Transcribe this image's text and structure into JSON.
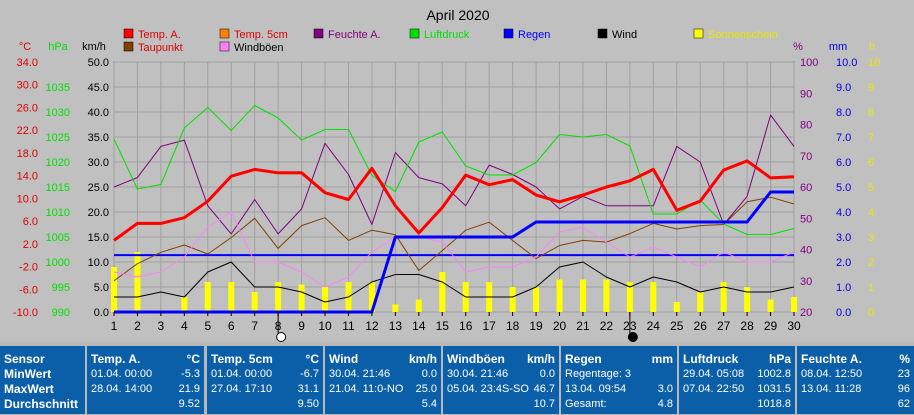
{
  "chart_data": {
    "type": "line",
    "title": "April 2020",
    "x": [
      1,
      2,
      3,
      4,
      5,
      6,
      7,
      8,
      9,
      10,
      11,
      12,
      13,
      14,
      15,
      16,
      17,
      18,
      19,
      20,
      21,
      22,
      23,
      24,
      25,
      26,
      27,
      28,
      29,
      30
    ],
    "xlim": [
      1,
      30
    ],
    "axes": {
      "celsius": {
        "unit": "°C",
        "ticks": [
          "34.0",
          "30.0",
          "26.0",
          "22.0",
          "18.0",
          "14.0",
          "10.0",
          "6.0",
          "2.0",
          "-2.0",
          "-6.0",
          "-10.0"
        ],
        "range": [
          -10,
          34
        ],
        "color": "#e00000"
      },
      "hpa": {
        "unit": "hPa",
        "ticks": [
          "1035",
          "1030",
          "1025",
          "1020",
          "1015",
          "1010",
          "1005",
          "1000",
          "995",
          "990"
        ],
        "range": [
          990,
          1040
        ],
        "color": "#00e000"
      },
      "kmh": {
        "unit": "km/h",
        "ticks": [
          "50.0",
          "45.0",
          "40.0",
          "35.0",
          "30.0",
          "25.0",
          "20.0",
          "15.0",
          "10.0",
          "5.0",
          "0.0"
        ],
        "range": [
          0,
          50
        ],
        "color": "#000000"
      },
      "percent": {
        "unit": "%",
        "ticks": [
          "100",
          "90",
          "80",
          "70",
          "60",
          "50",
          "40",
          "30",
          "20"
        ],
        "range": [
          20,
          100
        ],
        "color": "#800080"
      },
      "mm": {
        "unit": "mm",
        "ticks": [
          "10.0",
          "9.0",
          "8.0",
          "7.0",
          "6.0",
          "5.0",
          "4.0",
          "3.0",
          "2.0",
          "1.0",
          "0.0"
        ],
        "range": [
          0,
          10
        ],
        "color": "#0000e0"
      },
      "hours": {
        "unit": "h",
        "ticks": [
          "10",
          "9",
          "8",
          "7",
          "6",
          "5",
          "4",
          "3",
          "2",
          "1",
          "0"
        ],
        "range": [
          0,
          10
        ],
        "color": "#e8e800"
      }
    },
    "moon_phases": [
      {
        "day": 8,
        "phase": "full"
      },
      {
        "day": 23,
        "phase": "new"
      }
    ],
    "series": [
      {
        "name": "Temp. A.",
        "axis": "celsius",
        "color": "#ff0000",
        "width": 3,
        "values": [
          2.6,
          5.6,
          5.6,
          6.6,
          9.5,
          13.9,
          15.1,
          14.5,
          14.5,
          11.0,
          9.8,
          15.3,
          8.7,
          3.9,
          8.4,
          14.1,
          12.4,
          13.3,
          10.6,
          9.4,
          10.6,
          12.0,
          13.1,
          15.1,
          7.9,
          9.5,
          15.0,
          16.6,
          13.6,
          13.8
        ]
      },
      {
        "name": "Temp. 5cm",
        "axis": "celsius",
        "color": "#ff8000",
        "width": 1,
        "values": [
          2.6,
          5.4,
          5.4,
          6.4,
          9.3,
          13.7,
          14.9,
          14.3,
          14.3,
          10.8,
          9.6,
          15.1,
          8.5,
          3.7,
          8.2,
          13.9,
          12.2,
          13.1,
          10.4,
          9.2,
          10.4,
          11.8,
          12.9,
          14.9,
          7.7,
          9.3,
          14.8,
          16.4,
          13.4,
          13.6
        ]
      },
      {
        "name": "Taupunkt",
        "axis": "celsius",
        "color": "#804000",
        "width": 1,
        "values": [
          -4.5,
          -1.5,
          0.5,
          1.8,
          0.2,
          3.1,
          6.5,
          1.2,
          5.2,
          6.6,
          2.6,
          4.4,
          3.6,
          -2.7,
          0.8,
          4.4,
          5.8,
          2.6,
          -0.6,
          1.7,
          2.6,
          2.3,
          3.8,
          5.6,
          4.6,
          5.2,
          5.4,
          9.4,
          10.2,
          9.0
        ]
      },
      {
        "name": "Feuchte A.",
        "axis": "percent",
        "color": "#800080",
        "width": 1,
        "values": [
          60,
          63,
          73,
          75,
          54,
          45,
          56,
          45,
          53,
          74,
          64,
          48,
          71,
          63,
          61,
          54,
          67,
          64,
          60,
          53,
          57,
          54,
          54,
          54,
          73,
          68,
          48,
          57,
          83,
          73
        ]
      },
      {
        "name": "Luftdruck",
        "axis": "hpa",
        "color": "#00e000",
        "width": 1,
        "values": [
          1024.6,
          1014.6,
          1015.5,
          1026.8,
          1030.9,
          1026.3,
          1031.3,
          1028.8,
          1024.4,
          1026.5,
          1026.5,
          1017.3,
          1014.1,
          1024.0,
          1026.0,
          1019.2,
          1017.4,
          1017.4,
          1019.9,
          1025.5,
          1025.0,
          1025.5,
          1023.2,
          1009.6,
          1009.6,
          1012.4,
          1007.6,
          1005.5,
          1005.5,
          1006.7
        ]
      },
      {
        "name": "Wind",
        "axis": "kmh",
        "color": "#000000",
        "width": 1,
        "values": [
          3.0,
          3.0,
          4.0,
          3.0,
          8.0,
          10.0,
          5.0,
          5.0,
          4.0,
          2.0,
          3.0,
          6.0,
          7.5,
          7.5,
          6.0,
          3.0,
          3.0,
          3.0,
          5.0,
          9.0,
          10.0,
          7.0,
          5.0,
          7.0,
          6.0,
          4.0,
          5.0,
          4.0,
          4.0,
          5.0
        ]
      },
      {
        "name": "Windböen",
        "axis": "kmh",
        "color": "#ff80ff",
        "width": 1,
        "values": [
          8.0,
          7.0,
          8.0,
          11.0,
          17.0,
          20.0,
          10.0,
          10.0,
          8.0,
          5.0,
          7.0,
          12.0,
          15.0,
          15.0,
          14.0,
          8.0,
          9.0,
          9.0,
          11.0,
          16.0,
          17.0,
          14.0,
          11.0,
          13.0,
          11.0,
          9.0,
          12.0,
          10.0,
          10.0,
          12.0
        ]
      },
      {
        "name": "Regen",
        "axis": "mm",
        "color": "#0000ff",
        "width": 3,
        "values": [
          0,
          0,
          0,
          0,
          0,
          0,
          0,
          0,
          0,
          0,
          0,
          0,
          3.0,
          3.0,
          3.0,
          3.0,
          3.0,
          3.0,
          3.6,
          3.6,
          3.6,
          3.6,
          3.6,
          3.6,
          3.6,
          3.6,
          3.6,
          3.6,
          4.8,
          4.8
        ]
      },
      {
        "name": "Sonnenschein",
        "axis": "hours",
        "color": "#ffff00",
        "type": "bar",
        "values": [
          1.8,
          2.4,
          0.0,
          0.6,
          1.2,
          1.2,
          0.8,
          1.2,
          1.1,
          1.0,
          1.2,
          1.2,
          0.3,
          0.5,
          1.6,
          1.2,
          1.2,
          1.0,
          1.0,
          1.3,
          1.3,
          1.3,
          1.2,
          1.2,
          0.4,
          0.8,
          1.2,
          1.0,
          0.5,
          0.6
        ]
      }
    ],
    "reference_lines": [
      {
        "axis": "celsius",
        "value": 0,
        "color": "#0000ff"
      }
    ],
    "legend": {
      "placement": "top",
      "items": [
        {
          "label": "Temp. A.",
          "color": "#ff0000",
          "text_color": "#e00000"
        },
        {
          "label": "Temp. 5cm",
          "color": "#ff8000",
          "text_color": "#e00000"
        },
        {
          "label": "Feuchte A.",
          "color": "#800080",
          "text_color": "#800080"
        },
        {
          "label": "Luftdruck",
          "color": "#00e000",
          "text_color": "#00e000"
        },
        {
          "label": "Regen",
          "color": "#0000ff",
          "text_color": "#0000ff"
        },
        {
          "label": "Wind",
          "color": "#000000",
          "text_color": "#000000"
        },
        {
          "label": "Sonnenschein",
          "color": "#ffff00",
          "text_color": "#e8e800"
        },
        {
          "label": "Taupunkt",
          "color": "#804000",
          "text_color": "#e00000"
        },
        {
          "label": "Windböen",
          "color": "#ff80ff",
          "text_color": "#000000"
        }
      ]
    },
    "grid": true
  },
  "stats": {
    "row_labels": [
      "Sensor",
      "MinWert",
      "MaxWert",
      "Durchschnitt"
    ],
    "panels": [
      {
        "title": "Temp. A.",
        "unit": "°C",
        "min_when": "01.04.  00:00",
        "min": "-5.3",
        "max_when": "28.04.  14:00",
        "max": "21.9",
        "avg_label": "",
        "avg": "9.52"
      },
      {
        "title": "Temp. 5cm",
        "unit": "°C",
        "min_when": "01.04.  00:00",
        "min": "-6.7",
        "max_when": "27.04.  17:10",
        "max": "31.1",
        "avg_label": "",
        "avg": "9.50"
      },
      {
        "title": "Wind",
        "unit": "km/h",
        "min_when": "30.04.  21:46",
        "min": "0.0",
        "max_when": "21.04.  11:0-NO",
        "max": "25.0",
        "avg_label": "",
        "avg": "5.4"
      },
      {
        "title": "Windböen",
        "unit": "km/h",
        "min_when": "30.04.  21:46",
        "min": "0.0",
        "max_when": "05.04.  23:4S-SO",
        "max": "46.7",
        "avg_label": "",
        "avg": "10.7"
      },
      {
        "title": "Regen",
        "unit": "mm",
        "min_when": "Regentage: 3",
        "min": "",
        "max_when": "13.04.  09:54",
        "max": "3.0",
        "avg_label": "Gesamt:",
        "avg": "4.8"
      },
      {
        "title": "Luftdruck",
        "unit": "hPa",
        "min_when": "29.04.  05:08",
        "min": "1002.8",
        "max_when": "07.04.  22:50",
        "max": "1031.5",
        "avg_label": "",
        "avg": "1018.8"
      },
      {
        "title": "Feuchte A.",
        "unit": "%",
        "min_when": "08.04.  12:50",
        "min": "23",
        "max_when": "13.04.  11:28",
        "max": "96",
        "avg_label": "",
        "avg": "62"
      }
    ]
  }
}
